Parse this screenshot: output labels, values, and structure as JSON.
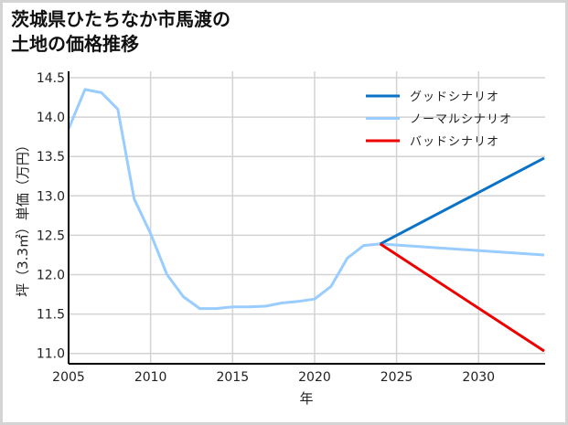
{
  "title": {
    "line1": "茨城県ひたちなか市馬渡の",
    "line2": "土地の価格推移"
  },
  "colors": {
    "good": "#0a72c7",
    "normal": "#99ccff",
    "bad": "#ee0000",
    "grid": "#d3d3d3",
    "axis": "#000000"
  },
  "chart_data": {
    "type": "line",
    "title": "茨城県ひたちなか市馬渡の土地の価格推移",
    "xlabel": "年",
    "ylabel": "坪（3.3㎡）単価（万円）",
    "xlim": [
      2005,
      2034
    ],
    "ylim": [
      10.9,
      14.5
    ],
    "x_ticks": [
      2005,
      2010,
      2015,
      2020,
      2025,
      2030
    ],
    "y_ticks": [
      11.0,
      11.5,
      12.0,
      12.5,
      13.0,
      13.5,
      14.0,
      14.5
    ],
    "grid": true,
    "legend_position": "upper right",
    "series": [
      {
        "name": "ノーマルシナリオ",
        "role": "history",
        "x": [
          2005,
          2006,
          2007,
          2008,
          2009,
          2010,
          2011,
          2012,
          2013,
          2014,
          2015,
          2016,
          2017,
          2018,
          2019,
          2020,
          2021,
          2022,
          2023,
          2024
        ],
        "values": [
          13.85,
          14.35,
          14.31,
          14.1,
          12.96,
          12.52,
          12.0,
          11.72,
          11.57,
          11.57,
          11.59,
          11.59,
          11.6,
          11.64,
          11.66,
          11.69,
          11.85,
          12.21,
          12.37,
          12.39
        ]
      },
      {
        "name": "グッドシナリオ",
        "x": [
          2024,
          2034
        ],
        "values": [
          12.39,
          13.48
        ]
      },
      {
        "name": "ノーマルシナリオ",
        "x": [
          2024,
          2034
        ],
        "values": [
          12.39,
          12.25
        ]
      },
      {
        "name": "バッドシナリオ",
        "x": [
          2024,
          2034
        ],
        "values": [
          12.39,
          11.03
        ]
      }
    ]
  },
  "legend": [
    {
      "label": "グッドシナリオ",
      "color": "#0a72c7"
    },
    {
      "label": "ノーマルシナリオ",
      "color": "#99ccff"
    },
    {
      "label": "バッドシナリオ",
      "color": "#ee0000"
    }
  ]
}
